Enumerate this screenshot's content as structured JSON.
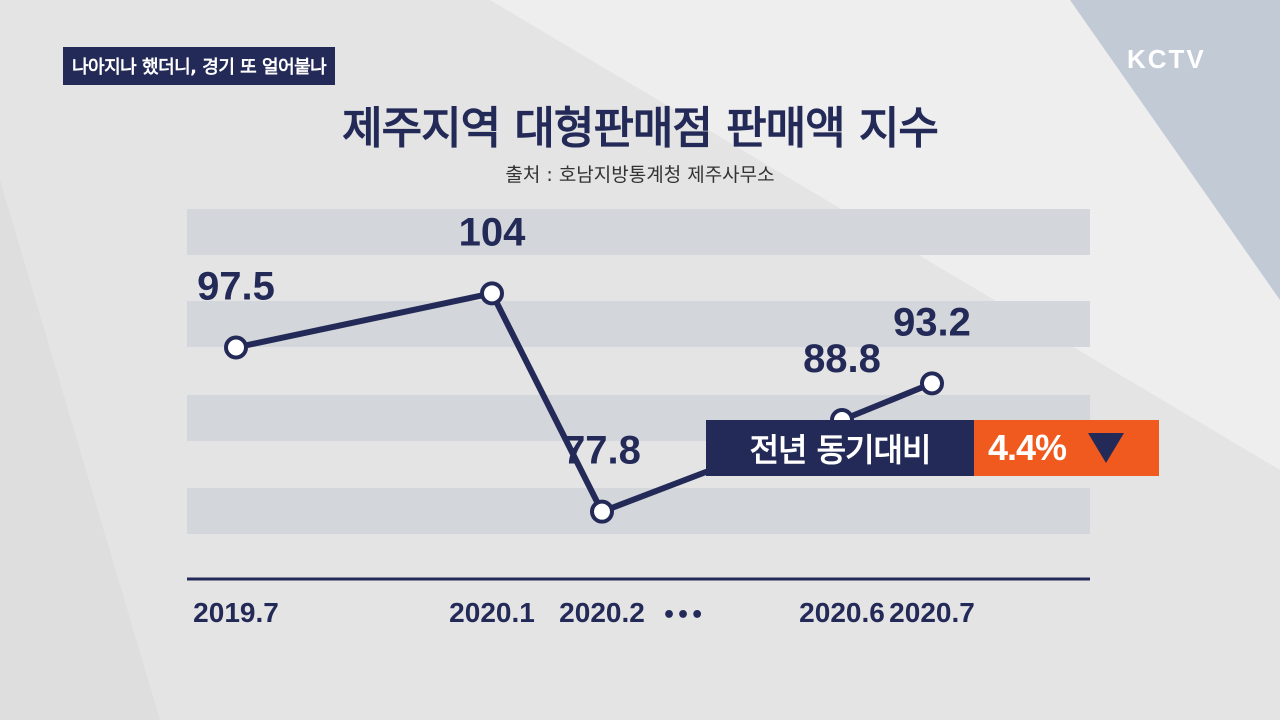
{
  "tag": "나아지나 했더니, 경기 또 얼어붙나",
  "logo": "KCTV",
  "chart_data": {
    "type": "line",
    "title": "제주지역 대형판매점 판매액 지수",
    "subtitle": "출처 : 호남지방통계청 제주사무소",
    "categories": [
      "2019.7",
      "2020.1",
      "2020.2",
      "2020.6",
      "2020.7"
    ],
    "values": [
      97.5,
      104,
      77.8,
      88.8,
      93.2
    ],
    "labels": [
      "97.5",
      "104",
      "77.8",
      "88.8",
      "93.2"
    ],
    "gap_marker": "•••",
    "line_color": "#232a57",
    "ylim": [
      60,
      120
    ],
    "grid": true
  },
  "badge": {
    "label": "전년 동기대비",
    "value": "4.4%",
    "direction": "down",
    "label_color": "#232a57",
    "value_color": "#f05a1e"
  }
}
